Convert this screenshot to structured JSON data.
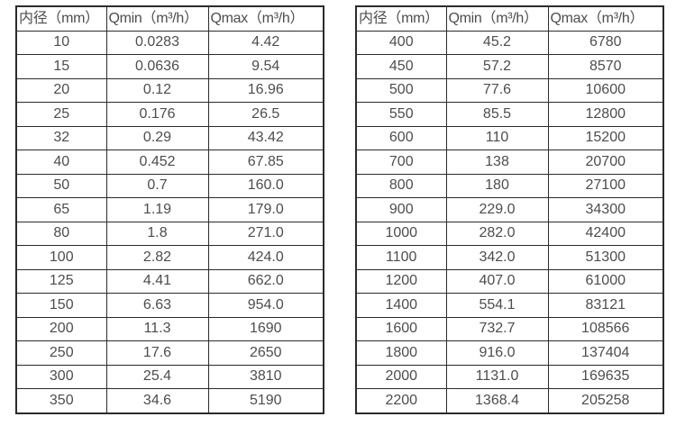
{
  "colors": {
    "background": "#ffffff",
    "border": "#2b2b2b",
    "text": "#4d4d4d"
  },
  "tables": [
    {
      "name": "flow-rate-table-dn10-dn350",
      "headers": [
        "内径（mm）",
        "Qmin（m³/h）",
        "Qmax（m³/h）"
      ],
      "rows": [
        [
          "10",
          "0.0283",
          "4.42"
        ],
        [
          "15",
          "0.0636",
          "9.54"
        ],
        [
          "20",
          "0.12",
          "16.96"
        ],
        [
          "25",
          "0.176",
          "26.5"
        ],
        [
          "32",
          "0.29",
          "43.42"
        ],
        [
          "40",
          "0.452",
          "67.85"
        ],
        [
          "50",
          "0.7",
          "160.0"
        ],
        [
          "65",
          "1.19",
          "179.0"
        ],
        [
          "80",
          "1.8",
          "271.0"
        ],
        [
          "100",
          "2.82",
          "424.0"
        ],
        [
          "125",
          "4.41",
          "662.0"
        ],
        [
          "150",
          "6.63",
          "954.0"
        ],
        [
          "200",
          "11.3",
          "1690"
        ],
        [
          "250",
          "17.6",
          "2650"
        ],
        [
          "300",
          "25.4",
          "3810"
        ],
        [
          "350",
          "34.6",
          "5190"
        ]
      ]
    },
    {
      "name": "flow-rate-table-dn400-dn2200",
      "headers": [
        "内径（mm）",
        "Qmin（m³/h）",
        "Qmax（m³/h）"
      ],
      "rows": [
        [
          "400",
          "45.2",
          "6780"
        ],
        [
          "450",
          "57.2",
          "8570"
        ],
        [
          "500",
          "77.6",
          "10600"
        ],
        [
          "550",
          "85.5",
          "12800"
        ],
        [
          "600",
          "110",
          "15200"
        ],
        [
          "700",
          "138",
          "20700"
        ],
        [
          "800",
          "180",
          "27100"
        ],
        [
          "900",
          "229.0",
          "34300"
        ],
        [
          "1000",
          "282.0",
          "42400"
        ],
        [
          "1100",
          "342.0",
          "51300"
        ],
        [
          "1200",
          "407.0",
          "61000"
        ],
        [
          "1400",
          "554.1",
          "83121"
        ],
        [
          "1600",
          "732.7",
          "108566"
        ],
        [
          "1800",
          "916.0",
          "137404"
        ],
        [
          "2000",
          "1131.0",
          "169635"
        ],
        [
          "2200",
          "1368.4",
          "205258"
        ]
      ]
    }
  ]
}
